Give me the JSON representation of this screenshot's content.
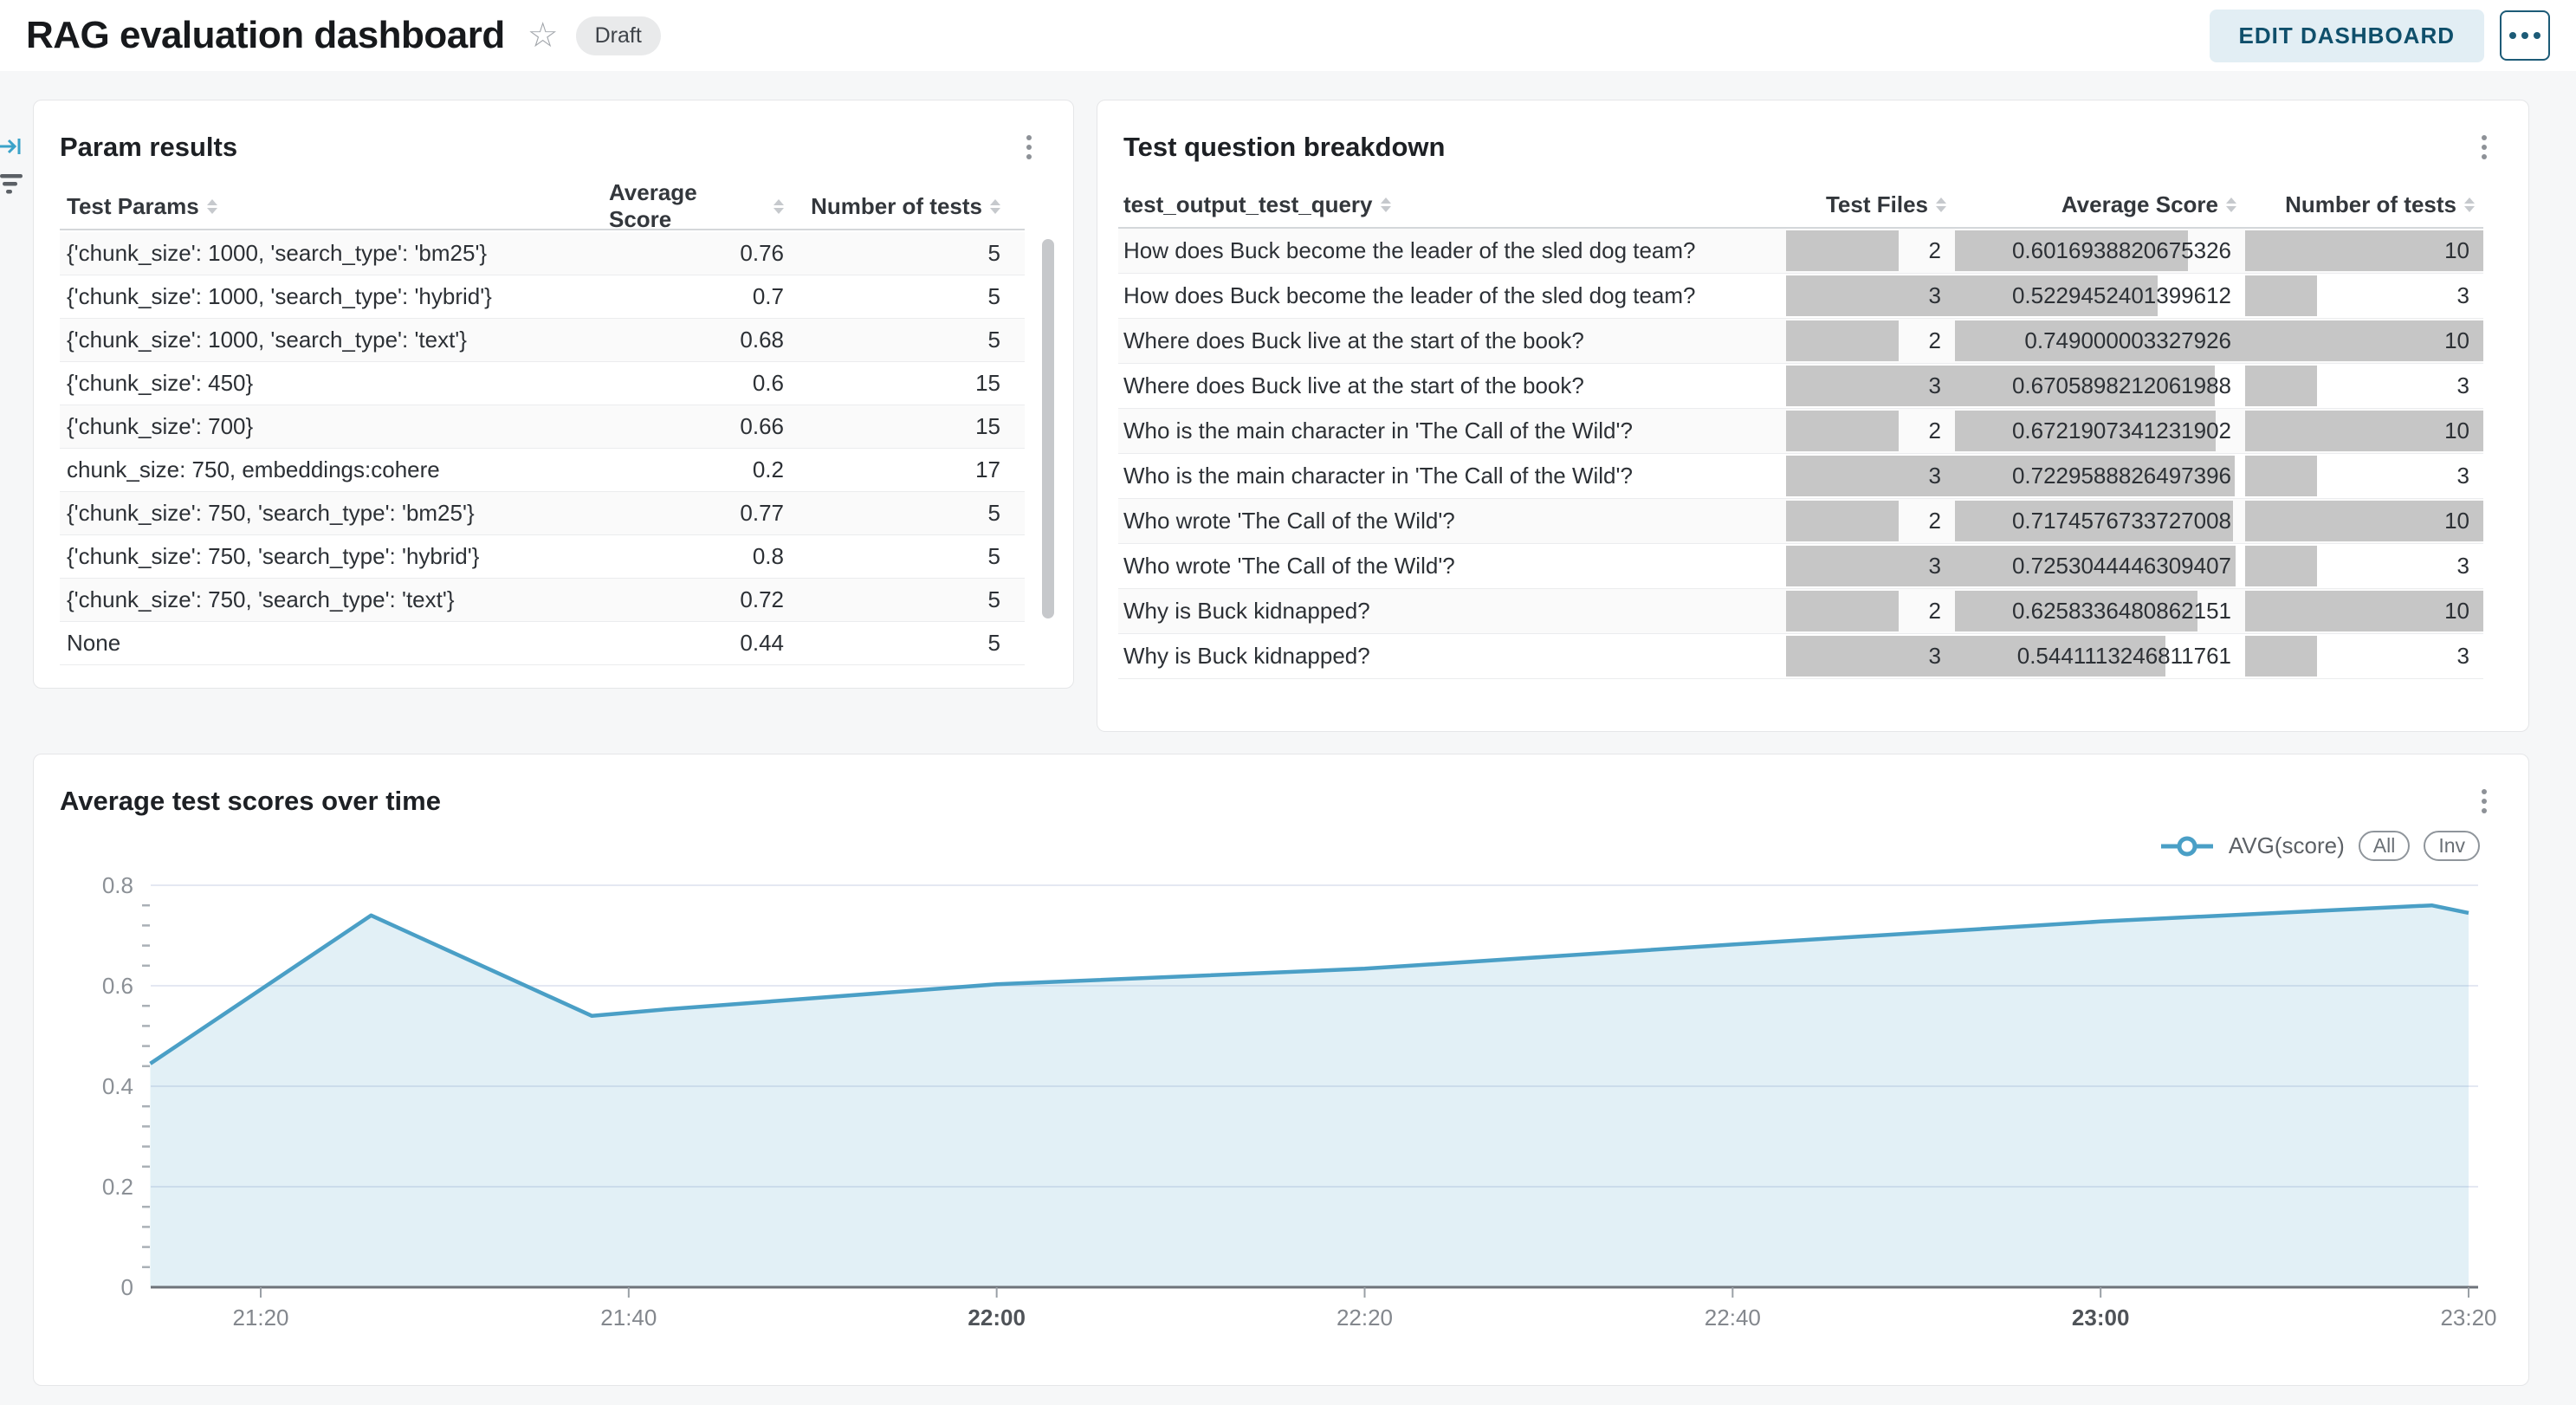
{
  "header": {
    "title": "RAG evaluation dashboard",
    "status_badge": "Draft",
    "edit_button": "EDIT DASHBOARD"
  },
  "icons": [
    "star-icon",
    "more-options-icon",
    "collapse-panel-icon",
    "filter-icon",
    "kebab-menu-icon",
    "sort-icon"
  ],
  "colors": {
    "accent_line": "#4a9fc6",
    "area_fill": "rgba(74,159,198,0.16)",
    "data_bar": "#c6c6c6",
    "edit_button_bg": "#e2eef4",
    "edit_button_text": "#0f4f6b",
    "page_bg": "#f6f7f8"
  },
  "param_results": {
    "title": "Param results",
    "columns": [
      "Test Params",
      "Average Score",
      "Number of tests"
    ],
    "rows": [
      [
        "{'chunk_size': 1000, 'search_type': 'bm25'}",
        "0.76",
        "5"
      ],
      [
        "{'chunk_size': 1000, 'search_type': 'hybrid'}",
        "0.7",
        "5"
      ],
      [
        "{'chunk_size': 1000, 'search_type': 'text'}",
        "0.68",
        "5"
      ],
      [
        "{'chunk_size': 450}",
        "0.6",
        "15"
      ],
      [
        "{'chunk_size': 700}",
        "0.66",
        "15"
      ],
      [
        "chunk_size: 750, embeddings:cohere",
        "0.2",
        "17"
      ],
      [
        "{'chunk_size': 750, 'search_type': 'bm25'}",
        "0.77",
        "5"
      ],
      [
        "{'chunk_size': 750, 'search_type': 'hybrid'}",
        "0.8",
        "5"
      ],
      [
        "{'chunk_size': 750, 'search_type': 'text'}",
        "0.72",
        "5"
      ],
      [
        "None",
        "0.44",
        "5"
      ]
    ]
  },
  "question_breakdown": {
    "title": "Test question breakdown",
    "columns": [
      "test_output_test_query",
      "Test Files",
      "Average Score",
      "Number of tests"
    ],
    "rows": [
      [
        "How does Buck become the leader of the sled dog team?",
        2,
        "0.6016938820675326",
        10
      ],
      [
        "How does Buck become the leader of the sled dog team?",
        3,
        "0.5229452401399612",
        3
      ],
      [
        "Where does Buck live at the start of the book?",
        2,
        "0.749000003327926",
        10
      ],
      [
        "Where does Buck live at the start of the book?",
        3,
        "0.6705898212061988",
        3
      ],
      [
        "Who is the main character in 'The Call of the Wild'?",
        2,
        "0.6721907341231902",
        10
      ],
      [
        "Who is the main character in 'The Call of the Wild'?",
        3,
        "0.7229588826497396",
        3
      ],
      [
        "Who wrote 'The Call of the Wild'?",
        2,
        "0.7174576733727008",
        10
      ],
      [
        "Who wrote 'The Call of the Wild'?",
        3,
        "0.7253044446309407",
        3
      ],
      [
        "Why is Buck kidnapped?",
        2,
        "0.6258336480862151",
        10
      ],
      [
        "Why is Buck kidnapped?",
        3,
        "0.5441113246811761",
        3
      ]
    ]
  },
  "chart_panel": {
    "title": "Average test scores over time",
    "legend_series": "AVG(score)",
    "legend_buttons": [
      "All",
      "Inv"
    ]
  },
  "chart_data": {
    "type": "area",
    "title": "Average test scores over time",
    "xlabel": "",
    "ylabel": "",
    "ylim": [
      0,
      0.8
    ],
    "grid": "horizontal",
    "legend_position": "top-right",
    "series": [
      {
        "name": "AVG(score)",
        "points": [
          [
            "21:14",
            0.445
          ],
          [
            "21:26",
            0.74
          ],
          [
            "21:38",
            0.54
          ],
          [
            "21:42",
            0.553
          ],
          [
            "22:00",
            0.603
          ],
          [
            "22:20",
            0.634
          ],
          [
            "22:40",
            0.682
          ],
          [
            "23:00",
            0.728
          ],
          [
            "23:18",
            0.76
          ],
          [
            "23:20",
            0.745
          ]
        ]
      }
    ],
    "x_ticks": [
      {
        "label": "21:20",
        "bold": false
      },
      {
        "label": "21:40",
        "bold": false
      },
      {
        "label": "22:00",
        "bold": true
      },
      {
        "label": "22:20",
        "bold": false
      },
      {
        "label": "22:40",
        "bold": false
      },
      {
        "label": "23:00",
        "bold": true
      },
      {
        "label": "23:20",
        "bold": false
      }
    ],
    "y_ticks": [
      "0",
      "0.2",
      "0.4",
      "0.6",
      "0.8"
    ]
  }
}
